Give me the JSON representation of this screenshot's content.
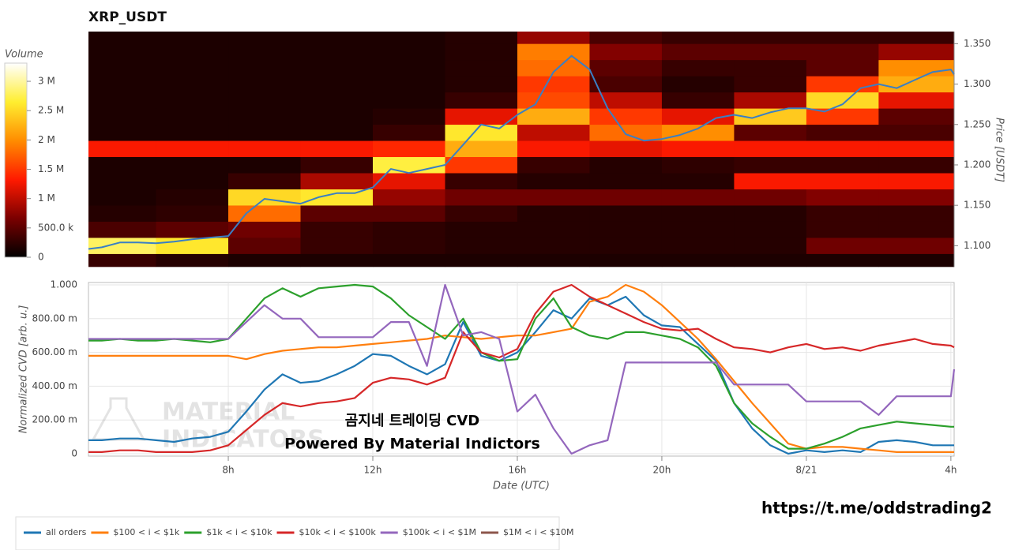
{
  "chart_data": [
    {
      "type": "heatmap",
      "title": "XRP_USDT",
      "ylabel": "Price [USDT]",
      "colorbar_title": "Volume",
      "colorscale": [
        "#000000",
        "#7a0000",
        "#ff1a00",
        "#ff8c00",
        "#ffee30",
        "#ffffff"
      ],
      "xlim": [
        4.13,
        28.09
      ],
      "ylim": [
        1.074,
        1.365
      ],
      "yticks": [
        {
          "value": 1.1,
          "label": "1.100"
        },
        {
          "value": 1.15,
          "label": "1.150"
        },
        {
          "value": 1.2,
          "label": "1.200"
        },
        {
          "value": 1.25,
          "label": "1.250"
        },
        {
          "value": 1.3,
          "label": "1.300"
        },
        {
          "value": 1.35,
          "label": "1.350"
        }
      ],
      "zlim": [
        0,
        3310000
      ],
      "zticks": [
        0,
        {
          "value": 500000,
          "label": "500.0 k"
        },
        {
          "value": 1000000,
          "label": "1 M"
        },
        {
          "value": 1500000,
          "label": "1.5 M"
        },
        {
          "value": 2000000,
          "label": "2 M"
        },
        {
          "value": 2500000,
          "label": "2.5 M"
        },
        {
          "value": 3000000,
          "label": "3 M"
        }
      ],
      "xbins": [
        4.13,
        6,
        8,
        10,
        12,
        14,
        16,
        18,
        20,
        22,
        24,
        26,
        28.09
      ],
      "ybins": [
        1.074,
        1.09,
        1.11,
        1.13,
        1.15,
        1.17,
        1.19,
        1.21,
        1.23,
        1.25,
        1.27,
        1.29,
        1.31,
        1.33,
        1.35,
        1.365
      ],
      "z": [
        [
          300000,
          200000,
          150000,
          150000,
          150000,
          150000,
          150000,
          150000,
          150000,
          150000,
          150000,
          150000
        ],
        [
          2800000,
          2600000,
          500000,
          300000,
          250000,
          200000,
          200000,
          200000,
          200000,
          200000,
          600000,
          600000
        ],
        [
          400000,
          500000,
          600000,
          300000,
          250000,
          200000,
          200000,
          200000,
          200000,
          200000,
          300000,
          300000
        ],
        [
          200000,
          250000,
          1800000,
          500000,
          500000,
          300000,
          200000,
          200000,
          200000,
          200000,
          300000,
          300000
        ],
        [
          150000,
          200000,
          2500000,
          2600000,
          800000,
          600000,
          600000,
          600000,
          600000,
          600000,
          700000,
          700000
        ],
        [
          150000,
          150000,
          300000,
          900000,
          1200000,
          300000,
          200000,
          200000,
          200000,
          1300000,
          1300000,
          1300000
        ],
        [
          150000,
          150000,
          150000,
          300000,
          2700000,
          1500000,
          300000,
          200000,
          250000,
          300000,
          300000,
          300000
        ],
        [
          1300000,
          1300000,
          1300000,
          1300000,
          1400000,
          2200000,
          1300000,
          1200000,
          1300000,
          1300000,
          1300000,
          1300000
        ],
        [
          150000,
          150000,
          150000,
          150000,
          300000,
          2600000,
          1000000,
          1800000,
          2000000,
          500000,
          400000,
          400000
        ],
        [
          150000,
          150000,
          150000,
          150000,
          200000,
          1200000,
          2200000,
          1500000,
          1200000,
          2400000,
          1500000,
          500000
        ],
        [
          150000,
          150000,
          150000,
          150000,
          150000,
          300000,
          1600000,
          1000000,
          300000,
          900000,
          2500000,
          1200000
        ],
        [
          150000,
          150000,
          150000,
          150000,
          150000,
          200000,
          1500000,
          400000,
          200000,
          300000,
          1500000,
          2200000
        ],
        [
          150000,
          150000,
          150000,
          150000,
          150000,
          200000,
          1800000,
          500000,
          300000,
          300000,
          500000,
          2000000
        ],
        [
          150000,
          150000,
          150000,
          150000,
          150000,
          200000,
          1900000,
          700000,
          500000,
          500000,
          500000,
          800000
        ],
        [
          150000,
          150000,
          150000,
          150000,
          150000,
          200000,
          800000,
          400000,
          300000,
          300000,
          300000,
          300000
        ]
      ],
      "line": {
        "color": "#3a7fc4",
        "x": [
          4.13,
          4.5,
          5,
          5.5,
          6,
          6.5,
          7,
          7.5,
          8,
          8.5,
          9,
          9.5,
          10,
          10.5,
          11,
          11.5,
          12,
          12.5,
          13,
          13.5,
          14,
          14.5,
          15,
          15.5,
          16,
          16.5,
          17,
          17.5,
          18,
          18.5,
          19,
          19.5,
          20,
          20.5,
          21,
          21.5,
          22,
          22.5,
          23,
          23.5,
          24,
          24.5,
          25,
          25.5,
          26,
          26.5,
          27,
          27.5,
          28,
          28.09
        ],
        "values": [
          1.096,
          1.098,
          1.104,
          1.104,
          1.103,
          1.105,
          1.108,
          1.11,
          1.112,
          1.14,
          1.158,
          1.155,
          1.152,
          1.16,
          1.165,
          1.165,
          1.172,
          1.195,
          1.19,
          1.195,
          1.2,
          1.225,
          1.25,
          1.245,
          1.262,
          1.275,
          1.315,
          1.335,
          1.318,
          1.27,
          1.238,
          1.23,
          1.232,
          1.237,
          1.245,
          1.258,
          1.262,
          1.258,
          1.265,
          1.27,
          1.27,
          1.266,
          1.275,
          1.295,
          1.3,
          1.295,
          1.305,
          1.315,
          1.318,
          1.312
        ]
      }
    },
    {
      "type": "line",
      "xlabel": "Date (UTC)",
      "ylabel": "Normalized CVD [arb. u.]",
      "xlim": [
        4.13,
        28.09
      ],
      "ylim": [
        0,
        1
      ],
      "xticks": [
        {
          "value": 8,
          "label": "8h"
        },
        {
          "value": 12,
          "label": "12h"
        },
        {
          "value": 16,
          "label": "16h"
        },
        {
          "value": 20,
          "label": "20h"
        },
        {
          "value": 24,
          "label": "8/21"
        },
        {
          "value": 28,
          "label": "4h"
        }
      ],
      "yticks": [
        0,
        {
          "value": 0.2,
          "label": "200.00 m"
        },
        {
          "value": 0.4,
          "label": "400.00 m"
        },
        {
          "value": 0.6,
          "label": "600.00 m"
        },
        {
          "value": 0.8,
          "label": "800.00 m"
        },
        {
          "value": 1,
          "label": "1.000"
        }
      ],
      "grid": true,
      "x": [
        4.13,
        4.5,
        5,
        5.5,
        6,
        6.5,
        7,
        7.5,
        8,
        8.5,
        9,
        9.5,
        10,
        10.5,
        11,
        11.5,
        12,
        12.5,
        13,
        13.5,
        14,
        14.5,
        15,
        15.5,
        16,
        16.5,
        17,
        17.5,
        18,
        18.5,
        19,
        19.5,
        20,
        20.5,
        21,
        21.5,
        22,
        22.5,
        23,
        23.5,
        24,
        24.5,
        25,
        25.5,
        26,
        26.5,
        27,
        27.5,
        28,
        28.09
      ],
      "series": [
        {
          "name": "all orders",
          "color": "#1f77b4",
          "values": [
            0.08,
            0.08,
            0.09,
            0.09,
            0.08,
            0.07,
            0.09,
            0.1,
            0.13,
            0.25,
            0.38,
            0.47,
            0.42,
            0.43,
            0.47,
            0.52,
            0.59,
            0.58,
            0.52,
            0.47,
            0.53,
            0.78,
            0.58,
            0.55,
            0.6,
            0.72,
            0.85,
            0.8,
            0.92,
            0.88,
            0.93,
            0.82,
            0.76,
            0.75,
            0.65,
            0.55,
            0.3,
            0.15,
            0.05,
            0.0,
            0.02,
            0.01,
            0.02,
            0.01,
            0.07,
            0.08,
            0.07,
            0.05,
            0.05,
            0.05
          ]
        },
        {
          "name": "$100 < i < $1k",
          "color": "#ff7f0e",
          "values": [
            0.58,
            0.58,
            0.58,
            0.58,
            0.58,
            0.58,
            0.58,
            0.58,
            0.58,
            0.56,
            0.59,
            0.61,
            0.62,
            0.63,
            0.63,
            0.64,
            0.65,
            0.66,
            0.67,
            0.68,
            0.7,
            0.69,
            0.68,
            0.69,
            0.7,
            0.7,
            0.72,
            0.74,
            0.9,
            0.93,
            1.0,
            0.96,
            0.88,
            0.78,
            0.68,
            0.56,
            0.43,
            0.3,
            0.18,
            0.06,
            0.03,
            0.04,
            0.04,
            0.03,
            0.02,
            0.01,
            0.01,
            0.01,
            0.01,
            0.01
          ]
        },
        {
          "name": "$1k < i < $10k",
          "color": "#2ca02c",
          "values": [
            0.67,
            0.67,
            0.68,
            0.67,
            0.67,
            0.68,
            0.67,
            0.66,
            0.68,
            0.8,
            0.92,
            0.98,
            0.93,
            0.98,
            0.99,
            1.0,
            0.99,
            0.92,
            0.82,
            0.75,
            0.68,
            0.8,
            0.6,
            0.55,
            0.56,
            0.8,
            0.92,
            0.75,
            0.7,
            0.68,
            0.72,
            0.72,
            0.7,
            0.68,
            0.63,
            0.52,
            0.3,
            0.18,
            0.1,
            0.03,
            0.03,
            0.06,
            0.1,
            0.15,
            0.17,
            0.19,
            0.18,
            0.17,
            0.16,
            0.16
          ]
        },
        {
          "name": "$10k < i < $100k",
          "color": "#d62728",
          "values": [
            0.01,
            0.01,
            0.02,
            0.02,
            0.01,
            0.01,
            0.01,
            0.02,
            0.05,
            0.14,
            0.23,
            0.3,
            0.28,
            0.3,
            0.31,
            0.33,
            0.42,
            0.45,
            0.44,
            0.41,
            0.45,
            0.72,
            0.6,
            0.57,
            0.62,
            0.83,
            0.96,
            1.0,
            0.93,
            0.88,
            0.83,
            0.78,
            0.74,
            0.73,
            0.74,
            0.68,
            0.63,
            0.62,
            0.6,
            0.63,
            0.65,
            0.62,
            0.63,
            0.61,
            0.64,
            0.66,
            0.68,
            0.65,
            0.64,
            0.63
          ]
        },
        {
          "name": "$100k < i < $1M",
          "color": "#9467bd",
          "values": [
            0.68,
            0.68,
            0.68,
            0.68,
            0.68,
            0.68,
            0.68,
            0.68,
            0.68,
            0.78,
            0.88,
            0.8,
            0.8,
            0.69,
            0.69,
            0.69,
            0.69,
            0.78,
            0.78,
            0.52,
            1.0,
            0.7,
            0.72,
            0.68,
            0.25,
            0.35,
            0.15,
            0.0,
            0.05,
            0.08,
            0.54,
            0.54,
            0.54,
            0.54,
            0.54,
            0.54,
            0.41,
            0.41,
            0.41,
            0.41,
            0.31,
            0.31,
            0.31,
            0.31,
            0.23,
            0.34,
            0.34,
            0.34,
            0.34,
            0.5
          ]
        },
        {
          "name": "$1M < i < $10M",
          "color": "#8c564b",
          "values": [
            null,
            null,
            null,
            null,
            null,
            null,
            null,
            null,
            null,
            null,
            null,
            null,
            null,
            null,
            null,
            null,
            null,
            null,
            null,
            null,
            null,
            null,
            null,
            null,
            null,
            null,
            null,
            null,
            null,
            null,
            null,
            null,
            null,
            null,
            null,
            null,
            null,
            null,
            null,
            null,
            null,
            null,
            null,
            null,
            null,
            null,
            null,
            null,
            null,
            null
          ]
        }
      ]
    }
  ],
  "overlay": {
    "caption": "곰지네 트레이딩 CVD",
    "credit": "Powered By Material Indictors",
    "link": "https://t.me/oddstrading2",
    "watermark": [
      "MATERIAL",
      "INDICATORS"
    ]
  }
}
